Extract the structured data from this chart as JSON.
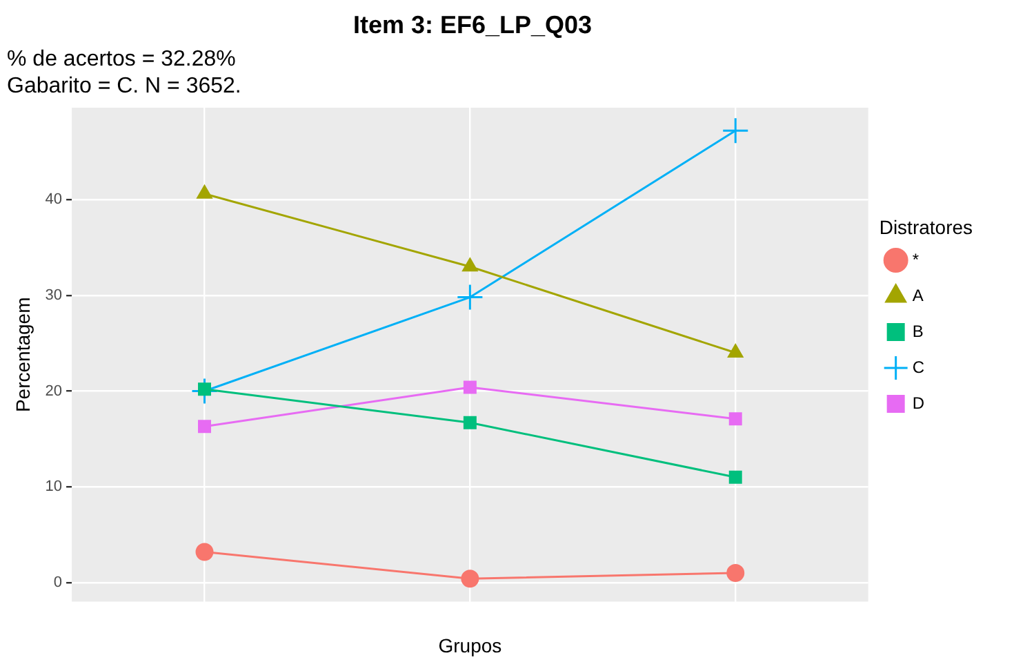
{
  "chart_data": {
    "type": "line",
    "title": "Item 3: EF6_LP_Q03",
    "subtitle": "% de acertos = 32.28%\nGabarito = C. N = 3652.",
    "xlabel": "Grupos",
    "ylabel": "Percentagem",
    "legend_title": "Distratores",
    "categories": [
      null,
      null,
      null
    ],
    "series": [
      {
        "name": "*",
        "color": "#f8766d",
        "marker": "circle",
        "values": [
          3.2,
          0.4,
          1.0
        ]
      },
      {
        "name": "A",
        "color": "#a3a500",
        "marker": "triangle",
        "values": [
          40.6,
          33.0,
          24.0
        ]
      },
      {
        "name": "B",
        "color": "#00bf7d",
        "marker": "square",
        "values": [
          20.2,
          16.7,
          11.0
        ]
      },
      {
        "name": "C",
        "color": "#00b0f6",
        "marker": "cross",
        "values": [
          20.0,
          29.8,
          47.2
        ]
      },
      {
        "name": "D",
        "color": "#e76bf3",
        "marker": "square",
        "values": [
          16.3,
          20.4,
          17.1
        ]
      }
    ],
    "ylim": [
      -2,
      49.6
    ],
    "yticks": [
      0,
      10,
      20,
      30,
      40
    ],
    "grid": true,
    "legend": "right"
  }
}
